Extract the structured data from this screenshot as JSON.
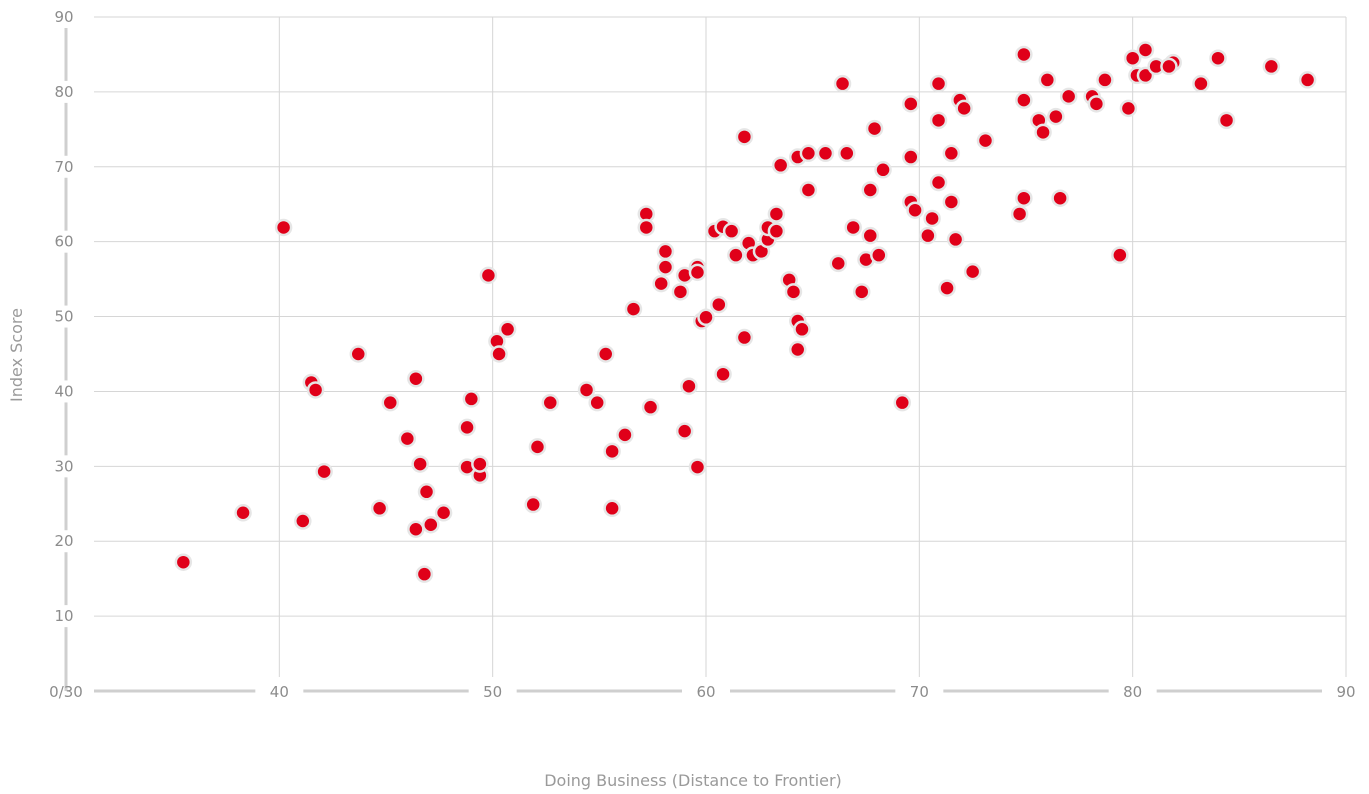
{
  "chart_data": {
    "type": "scatter",
    "xlabel": "Doing Business (Distance to Frontier)",
    "ylabel": "Index Score",
    "xlim": [
      30,
      90
    ],
    "ylim": [
      0,
      90
    ],
    "x_ticks": [
      {
        "value": 30,
        "label": "0/30"
      },
      {
        "value": 40,
        "label": "40"
      },
      {
        "value": 50,
        "label": "50"
      },
      {
        "value": 60,
        "label": "60"
      },
      {
        "value": 70,
        "label": "70"
      },
      {
        "value": 80,
        "label": "80"
      },
      {
        "value": 90,
        "label": "90"
      }
    ],
    "y_ticks": [
      {
        "value": 10,
        "label": "10"
      },
      {
        "value": 20,
        "label": "20"
      },
      {
        "value": 30,
        "label": "30"
      },
      {
        "value": 40,
        "label": "40"
      },
      {
        "value": 50,
        "label": "50"
      },
      {
        "value": 60,
        "label": "60"
      },
      {
        "value": 70,
        "label": "70"
      },
      {
        "value": 80,
        "label": "80"
      },
      {
        "value": 90,
        "label": "90"
      }
    ],
    "grid": true,
    "marker_color": "#e00019",
    "points": [
      [
        35.5,
        17.2
      ],
      [
        38.3,
        23.8
      ],
      [
        40.2,
        61.9
      ],
      [
        41.1,
        22.7
      ],
      [
        41.5,
        41.2
      ],
      [
        41.7,
        40.2
      ],
      [
        42.1,
        29.3
      ],
      [
        43.7,
        45.0
      ],
      [
        44.7,
        24.4
      ],
      [
        45.2,
        38.5
      ],
      [
        46.0,
        33.7
      ],
      [
        46.4,
        41.7
      ],
      [
        46.6,
        30.3
      ],
      [
        46.4,
        21.6
      ],
      [
        46.8,
        15.6
      ],
      [
        46.9,
        26.6
      ],
      [
        47.1,
        22.2
      ],
      [
        47.7,
        23.8
      ],
      [
        48.8,
        35.2
      ],
      [
        48.8,
        29.9
      ],
      [
        49.0,
        39.0
      ],
      [
        49.4,
        28.8
      ],
      [
        49.4,
        30.3
      ],
      [
        49.8,
        55.5
      ],
      [
        50.2,
        46.7
      ],
      [
        50.3,
        45.0
      ],
      [
        50.7,
        48.3
      ],
      [
        51.9,
        24.9
      ],
      [
        52.1,
        32.6
      ],
      [
        52.7,
        38.5
      ],
      [
        54.4,
        40.2
      ],
      [
        54.9,
        38.5
      ],
      [
        55.3,
        45.0
      ],
      [
        55.6,
        32.0
      ],
      [
        55.6,
        24.4
      ],
      [
        56.2,
        34.2
      ],
      [
        56.6,
        51.0
      ],
      [
        57.2,
        63.7
      ],
      [
        57.2,
        61.9
      ],
      [
        57.4,
        37.9
      ],
      [
        57.9,
        54.4
      ],
      [
        58.1,
        58.7
      ],
      [
        58.1,
        56.6
      ],
      [
        58.8,
        53.3
      ],
      [
        59.0,
        55.5
      ],
      [
        59.0,
        34.7
      ],
      [
        59.2,
        40.7
      ],
      [
        59.6,
        56.6
      ],
      [
        59.6,
        55.9
      ],
      [
        59.6,
        29.9
      ],
      [
        59.8,
        49.4
      ],
      [
        60.0,
        49.9
      ],
      [
        60.4,
        61.4
      ],
      [
        60.6,
        51.6
      ],
      [
        60.8,
        62.0
      ],
      [
        60.8,
        42.3
      ],
      [
        61.2,
        61.4
      ],
      [
        61.4,
        58.2
      ],
      [
        61.8,
        74.0
      ],
      [
        61.8,
        47.2
      ],
      [
        62.0,
        59.8
      ],
      [
        62.2,
        58.2
      ],
      [
        62.6,
        58.7
      ],
      [
        62.9,
        60.3
      ],
      [
        62.9,
        61.9
      ],
      [
        63.3,
        63.7
      ],
      [
        63.3,
        61.4
      ],
      [
        63.5,
        70.2
      ],
      [
        63.9,
        54.9
      ],
      [
        64.1,
        53.3
      ],
      [
        64.3,
        71.3
      ],
      [
        64.3,
        49.4
      ],
      [
        64.3,
        45.6
      ],
      [
        64.5,
        48.3
      ],
      [
        64.8,
        71.8
      ],
      [
        64.8,
        66.9
      ],
      [
        65.6,
        71.8
      ],
      [
        66.2,
        57.1
      ],
      [
        66.4,
        81.1
      ],
      [
        66.6,
        71.8
      ],
      [
        66.9,
        61.9
      ],
      [
        67.3,
        53.3
      ],
      [
        67.5,
        57.6
      ],
      [
        67.7,
        66.9
      ],
      [
        67.7,
        60.8
      ],
      [
        67.9,
        75.1
      ],
      [
        68.1,
        58.2
      ],
      [
        68.3,
        69.6
      ],
      [
        69.2,
        38.5
      ],
      [
        69.6,
        78.4
      ],
      [
        69.6,
        71.3
      ],
      [
        69.6,
        65.3
      ],
      [
        69.8,
        64.2
      ],
      [
        70.4,
        60.8
      ],
      [
        70.6,
        63.1
      ],
      [
        70.9,
        81.1
      ],
      [
        70.9,
        76.2
      ],
      [
        70.9,
        67.9
      ],
      [
        71.3,
        53.8
      ],
      [
        71.5,
        71.8
      ],
      [
        71.5,
        65.3
      ],
      [
        71.7,
        60.3
      ],
      [
        71.9,
        78.9
      ],
      [
        72.1,
        77.8
      ],
      [
        72.5,
        56.0
      ],
      [
        73.1,
        73.5
      ],
      [
        74.7,
        63.7
      ],
      [
        74.9,
        85.0
      ],
      [
        74.9,
        78.9
      ],
      [
        74.9,
        65.8
      ],
      [
        75.6,
        76.2
      ],
      [
        75.8,
        74.6
      ],
      [
        76.0,
        81.6
      ],
      [
        76.4,
        76.7
      ],
      [
        76.6,
        65.8
      ],
      [
        77.0,
        79.4
      ],
      [
        78.1,
        79.4
      ],
      [
        78.3,
        78.4
      ],
      [
        78.7,
        81.6
      ],
      [
        79.4,
        58.2
      ],
      [
        79.8,
        77.8
      ],
      [
        80.0,
        84.5
      ],
      [
        80.2,
        82.2
      ],
      [
        80.6,
        85.6
      ],
      [
        80.6,
        82.2
      ],
      [
        81.1,
        83.4
      ],
      [
        81.9,
        83.9
      ],
      [
        81.7,
        83.4
      ],
      [
        83.2,
        81.1
      ],
      [
        84.0,
        84.5
      ],
      [
        84.4,
        76.2
      ],
      [
        86.5,
        83.4
      ],
      [
        88.2,
        81.6
      ]
    ]
  }
}
